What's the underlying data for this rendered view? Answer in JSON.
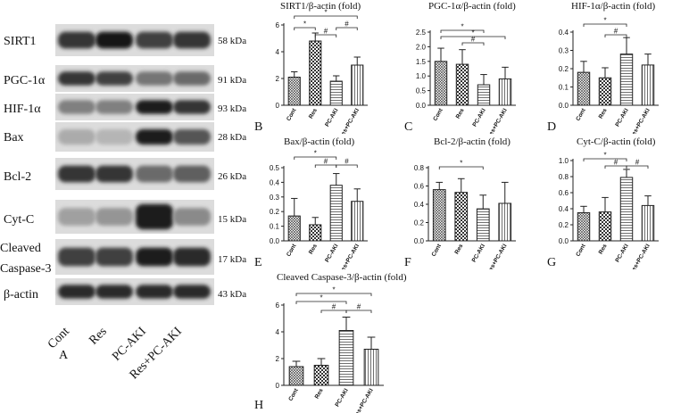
{
  "figure": {
    "western_blot": {
      "panel_letter": "A",
      "proteins": [
        {
          "name": "SIRT1",
          "size": "58 kDa"
        },
        {
          "name": "PGC-1α",
          "size": "91 kDa"
        },
        {
          "name": "HIF-1α",
          "size": "93 kDa"
        },
        {
          "name": "Bax",
          "size": "28 kDa"
        },
        {
          "name": "Bcl-2",
          "size": "26 kDa"
        },
        {
          "name": "Cyt-C",
          "size": "15 kDa"
        },
        {
          "name": "Cleaved Caspase-3",
          "size": "17 kDa"
        },
        {
          "name": "β-actin",
          "size": "43 kDa"
        }
      ],
      "lanes": [
        "Cont",
        "Res",
        "PC-AKI",
        "Res+PC-AKI"
      ]
    },
    "styles": {
      "bar_fill": "#ffffff",
      "stroke": "#222222",
      "blot_background": "#dcdcdc",
      "band_color": "#111111"
    }
  },
  "chart_data": [
    {
      "panel_letter": "B",
      "type": "bar",
      "title": "SIRT1/β-actin (fold)",
      "categories": [
        "Cont",
        "Res",
        "PC-AKI",
        "Res+PC-AKI"
      ],
      "values": [
        2.1,
        4.8,
        1.8,
        3.0
      ],
      "errors": [
        0.4,
        0.6,
        0.4,
        0.6
      ],
      "ylim": [
        0,
        6
      ],
      "yticks": [
        "0",
        "2",
        "4",
        "6"
      ],
      "significance": [
        {
          "from": 0,
          "to": 3,
          "label": "*"
        },
        {
          "from": 0,
          "to": 1,
          "label": "*"
        },
        {
          "from": 1,
          "to": 2,
          "label": "#"
        },
        {
          "from": 2,
          "to": 3,
          "label": "#"
        }
      ]
    },
    {
      "panel_letter": "C",
      "type": "bar",
      "title": "PGC-1α/β-actin (fold)",
      "categories": [
        "Cont",
        "Res",
        "PC-AKI",
        "Res+PC-AKI"
      ],
      "values": [
        1.5,
        1.4,
        0.7,
        0.9
      ],
      "errors": [
        0.45,
        0.5,
        0.35,
        0.4
      ],
      "ylim": [
        0,
        2.5
      ],
      "yticks": [
        "0.0",
        "0.5",
        "1.0",
        "1.5",
        "2.0",
        "2.5"
      ],
      "significance": [
        {
          "from": 0,
          "to": 2,
          "label": "*"
        },
        {
          "from": 0,
          "to": 3,
          "label": "*"
        },
        {
          "from": 1,
          "to": 2,
          "label": "#"
        }
      ]
    },
    {
      "panel_letter": "D",
      "type": "bar",
      "title": "HIF-1α/β-actin (fold)",
      "categories": [
        "Cont",
        "Res",
        "PC-AKI",
        "Res+PC-AKI"
      ],
      "values": [
        0.18,
        0.15,
        0.28,
        0.22
      ],
      "errors": [
        0.06,
        0.055,
        0.09,
        0.06
      ],
      "ylim": [
        0,
        0.4
      ],
      "yticks": [
        "0.0",
        "0.1",
        "0.2",
        "0.3",
        "0.4"
      ],
      "significance": [
        {
          "from": 0,
          "to": 2,
          "label": "*"
        },
        {
          "from": 1,
          "to": 2,
          "label": "#"
        }
      ]
    },
    {
      "panel_letter": "E",
      "type": "bar",
      "title": "Bax/β-actin (fold)",
      "categories": [
        "Cont",
        "Res",
        "PC-AKI",
        "Res+PC-AKI"
      ],
      "values": [
        0.17,
        0.11,
        0.38,
        0.27
      ],
      "errors": [
        0.12,
        0.05,
        0.08,
        0.085
      ],
      "ylim": [
        0,
        0.5
      ],
      "yticks": [
        "0.0",
        "0.1",
        "0.2",
        "0.3",
        "0.4",
        "0.5"
      ],
      "significance": [
        {
          "from": 0,
          "to": 2,
          "label": "*"
        },
        {
          "from": 1,
          "to": 2,
          "label": "#"
        },
        {
          "from": 2,
          "to": 3,
          "label": "#"
        }
      ]
    },
    {
      "panel_letter": "F",
      "type": "bar",
      "title": "Bcl-2/β-actin (fold)",
      "categories": [
        "Cont",
        "Res",
        "PC-AKI",
        "Res+PC-AKI"
      ],
      "values": [
        0.56,
        0.53,
        0.35,
        0.41
      ],
      "errors": [
        0.08,
        0.15,
        0.15,
        0.23
      ],
      "ylim": [
        0,
        0.8
      ],
      "yticks": [
        "0.0",
        "0.2",
        "0.4",
        "0.6",
        "0.8"
      ],
      "significance": [
        {
          "from": 0,
          "to": 2,
          "label": "*"
        }
      ]
    },
    {
      "panel_letter": "G",
      "type": "bar",
      "title": "Cyt-C/β-actin (fold)",
      "categories": [
        "Cont",
        "Res",
        "PC-AKI",
        "Res+PC-AKI"
      ],
      "values": [
        0.35,
        0.36,
        0.79,
        0.44
      ],
      "errors": [
        0.08,
        0.18,
        0.1,
        0.12
      ],
      "ylim": [
        0,
        1.0
      ],
      "yticks": [
        "0.0",
        "0.2",
        "0.4",
        "0.6",
        "0.8",
        "1.0"
      ],
      "significance": [
        {
          "from": 0,
          "to": 2,
          "label": "*"
        },
        {
          "from": 1,
          "to": 2,
          "label": "#"
        },
        {
          "from": 2,
          "to": 3,
          "label": "#"
        }
      ]
    },
    {
      "panel_letter": "H",
      "type": "bar",
      "title": "Cleaved Caspase-3/β-actin (fold)",
      "categories": [
        "Cont",
        "Res",
        "PC-AKI",
        "Res+PC-AKI"
      ],
      "values": [
        1.4,
        1.5,
        4.1,
        2.7
      ],
      "errors": [
        0.4,
        0.5,
        1.0,
        0.9
      ],
      "ylim": [
        0,
        6
      ],
      "yticks": [
        "0",
        "2",
        "4",
        "6"
      ],
      "significance": [
        {
          "from": 0,
          "to": 3,
          "label": "*"
        },
        {
          "from": 0,
          "to": 2,
          "label": "*"
        },
        {
          "from": 1,
          "to": 2,
          "label": "#"
        },
        {
          "from": 2,
          "to": 3,
          "label": "#"
        }
      ]
    }
  ]
}
